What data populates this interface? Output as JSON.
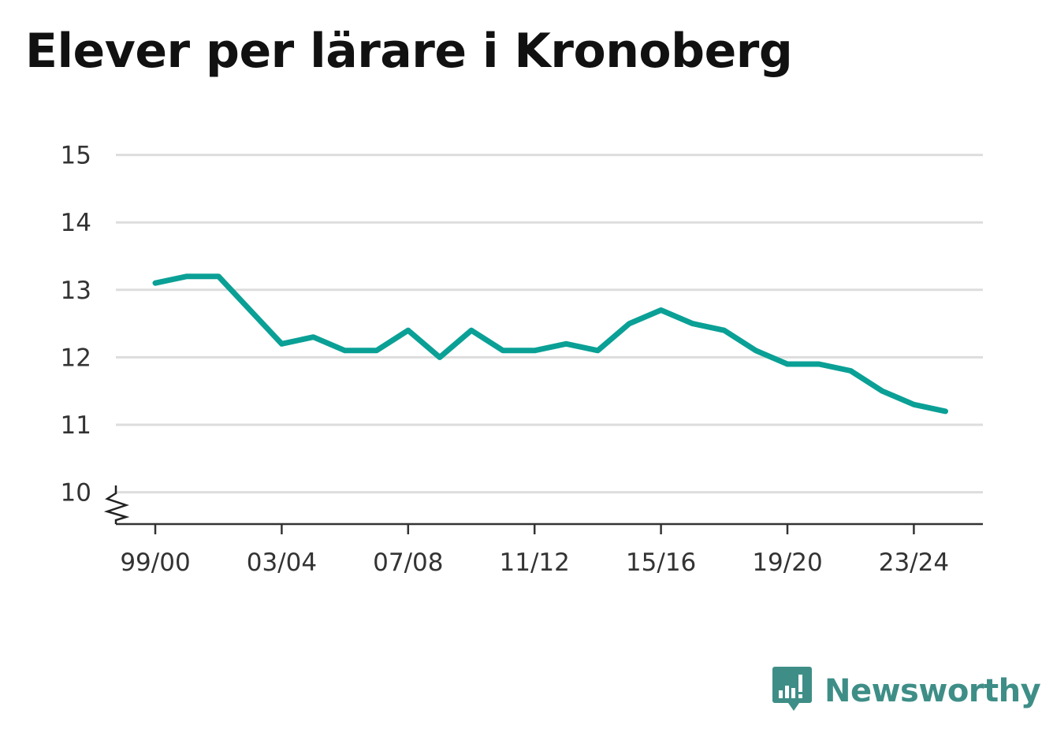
{
  "title": "Elever per lärare i Kronoberg",
  "brand": {
    "name": "Newsworthy",
    "icon": "newsworthy-logo-icon",
    "color": "#3e8e87"
  },
  "chart_data": {
    "type": "line",
    "title": "Elever per lärare i Kronoberg",
    "xlabel": "",
    "ylabel": "",
    "x": [
      "99/00",
      "00/01",
      "01/02",
      "02/03",
      "03/04",
      "04/05",
      "05/06",
      "06/07",
      "07/08",
      "08/09",
      "09/10",
      "10/11",
      "11/12",
      "12/13",
      "13/14",
      "14/15",
      "15/16",
      "16/17",
      "17/18",
      "18/19",
      "19/20",
      "20/21",
      "21/22",
      "22/23",
      "23/24",
      "24/25"
    ],
    "x_tick_labels": [
      "99/00",
      "03/04",
      "07/08",
      "11/12",
      "15/16",
      "19/20",
      "23/24"
    ],
    "y_ticks": [
      10,
      11,
      12,
      13,
      14,
      15
    ],
    "ylim": [
      9.5,
      15
    ],
    "y_axis_break": true,
    "grid": true,
    "series": [
      {
        "color": "#0aa096",
        "values": [
          13.1,
          13.2,
          13.2,
          12.7,
          12.2,
          12.3,
          12.1,
          12.1,
          12.4,
          12.0,
          12.4,
          12.1,
          12.1,
          12.2,
          12.1,
          12.5,
          12.7,
          12.5,
          12.4,
          12.1,
          11.9,
          11.9,
          11.8,
          11.5,
          11.3,
          11.2
        ]
      }
    ]
  }
}
